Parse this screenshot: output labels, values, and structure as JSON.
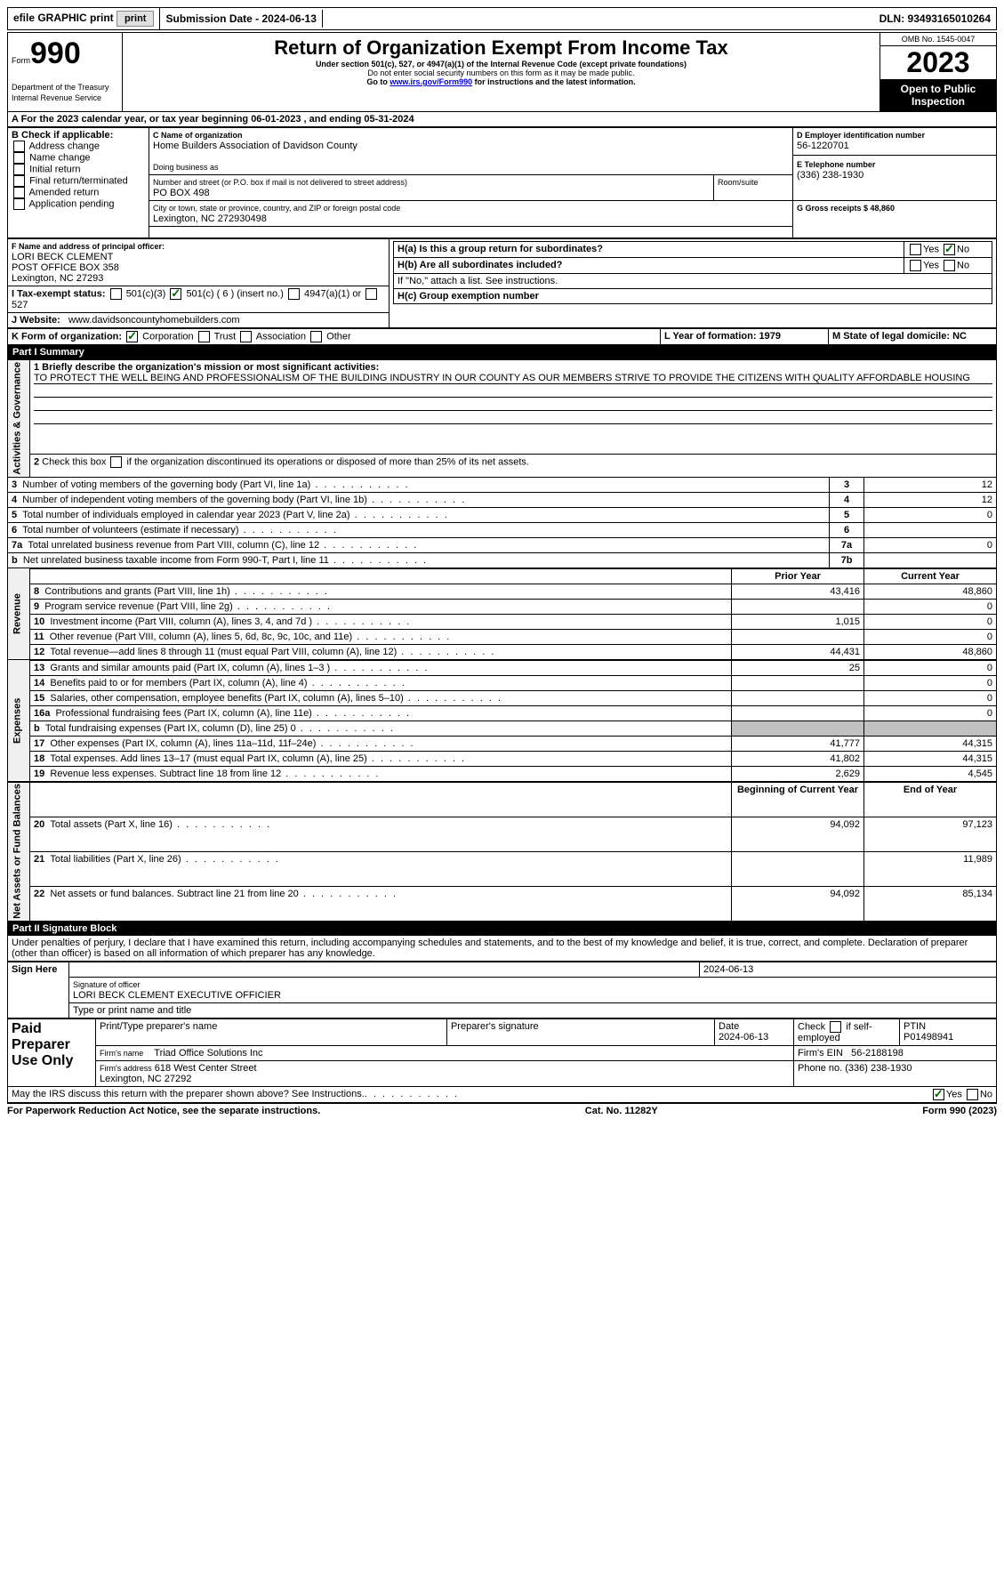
{
  "topbar": {
    "efile_label": "efile GRAPHIC print",
    "submission_label": "Submission Date - 2024-06-13",
    "dln_label": "DLN: 93493165010264"
  },
  "header": {
    "form_label": "Form",
    "form_number": "990",
    "dept": "Department of the Treasury",
    "irs": "Internal Revenue Service",
    "title": "Return of Organization Exempt From Income Tax",
    "subtitle": "Under section 501(c), 527, or 4947(a)(1) of the Internal Revenue Code (except private foundations)",
    "warning": "Do not enter social security numbers on this form as it may be made public.",
    "goto": "Go to www.irs.gov/Form990 for instructions and the latest information.",
    "omb": "OMB No. 1545-0047",
    "year": "2023",
    "open_public": "Open to Public Inspection"
  },
  "row_a": {
    "label": "A For the 2023 calendar year, or tax year beginning 06-01-2023    , and ending 05-31-2024"
  },
  "section_b": {
    "label": "B Check if applicable:",
    "opts": [
      "Address change",
      "Name change",
      "Initial return",
      "Final return/terminated",
      "Amended return",
      "Application pending"
    ]
  },
  "section_c": {
    "name_label": "C Name of organization",
    "org_name": "Home Builders Association of Davidson County",
    "dba_label": "Doing business as",
    "street_label": "Number and street (or P.O. box if mail is not delivered to street address)",
    "street": "PO BOX 498",
    "room_label": "Room/suite",
    "city_label": "City or town, state or province, country, and ZIP or foreign postal code",
    "city": "Lexington, NC  272930498"
  },
  "section_d": {
    "label": "D Employer identification number",
    "value": "56-1220701"
  },
  "section_e": {
    "label": "E Telephone number",
    "value": "(336) 238-1930"
  },
  "section_g": {
    "label": "G Gross receipts $ 48,860"
  },
  "section_f": {
    "label": "F Name and address of principal officer:",
    "name": "LORI BECK CLEMENT",
    "addr1": "POST OFFICE BOX 358",
    "addr2": "Lexington, NC  27293"
  },
  "section_h": {
    "ha_label": "H(a)  Is this a group return for subordinates?",
    "hb_label": "H(b)  Are all subordinates included?",
    "hb_note": "If \"No,\" attach a list. See instructions.",
    "hc_label": "H(c)  Group exemption number"
  },
  "row_i": {
    "label": "I    Tax-exempt status:",
    "opts": [
      "501(c)(3)",
      "501(c) ( 6 ) (insert no.)",
      "4947(a)(1) or",
      "527"
    ]
  },
  "row_j": {
    "label": "J    Website:",
    "value": "www.davidsoncountyhomebuilders.com"
  },
  "row_k": {
    "label": "K Form of organization:",
    "opts": [
      "Corporation",
      "Trust",
      "Association",
      "Other"
    ]
  },
  "row_l": {
    "label": "L Year of formation: 1979"
  },
  "row_m": {
    "label": "M State of legal domicile: NC"
  },
  "part1": {
    "header": "Part I      Summary",
    "q1_label": "1   Briefly describe the organization's mission or most significant activities:",
    "q1_value": "TO PROTECT THE WELL BEING AND PROFESSIONALISM OF THE BUILDING INDUSTRY IN OUR COUNTY AS OUR MEMBERS STRIVE TO PROVIDE THE CITIZENS WITH QUALITY AFFORDABLE HOUSING",
    "q2": "2   Check this box           if the organization discontinued its operations or disposed of more than 25% of its net assets.",
    "rows_ag": [
      {
        "num": "3",
        "label": "Number of voting members of the governing body (Part VI, line 1a)",
        "col": "3",
        "val": "12"
      },
      {
        "num": "4",
        "label": "Number of independent voting members of the governing body (Part VI, line 1b)",
        "col": "4",
        "val": "12"
      },
      {
        "num": "5",
        "label": "Total number of individuals employed in calendar year 2023 (Part V, line 2a)",
        "col": "5",
        "val": "0"
      },
      {
        "num": "6",
        "label": "Total number of volunteers (estimate if necessary)",
        "col": "6",
        "val": ""
      },
      {
        "num": "7a",
        "label": "Total unrelated business revenue from Part VIII, column (C), line 12",
        "col": "7a",
        "val": "0"
      },
      {
        "num": "b",
        "label": "Net unrelated business taxable income from Form 990-T, Part I, line 11",
        "col": "7b",
        "val": ""
      }
    ],
    "prior_year": "Prior Year",
    "current_year": "Current Year",
    "rows_rev": [
      {
        "num": "8",
        "label": "Contributions and grants (Part VIII, line 1h)",
        "py": "43,416",
        "cy": "48,860"
      },
      {
        "num": "9",
        "label": "Program service revenue (Part VIII, line 2g)",
        "py": "",
        "cy": "0"
      },
      {
        "num": "10",
        "label": "Investment income (Part VIII, column (A), lines 3, 4, and 7d )",
        "py": "1,015",
        "cy": "0"
      },
      {
        "num": "11",
        "label": "Other revenue (Part VIII, column (A), lines 5, 6d, 8c, 9c, 10c, and 11e)",
        "py": "",
        "cy": "0"
      },
      {
        "num": "12",
        "label": "Total revenue—add lines 8 through 11 (must equal Part VIII, column (A), line 12)",
        "py": "44,431",
        "cy": "48,860"
      }
    ],
    "rows_exp": [
      {
        "num": "13",
        "label": "Grants and similar amounts paid (Part IX, column (A), lines 1–3 )",
        "py": "25",
        "cy": "0"
      },
      {
        "num": "14",
        "label": "Benefits paid to or for members (Part IX, column (A), line 4)",
        "py": "",
        "cy": "0"
      },
      {
        "num": "15",
        "label": "Salaries, other compensation, employee benefits (Part IX, column (A), lines 5–10)",
        "py": "",
        "cy": "0"
      },
      {
        "num": "16a",
        "label": "Professional fundraising fees (Part IX, column (A), line 11e)",
        "py": "",
        "cy": "0"
      },
      {
        "num": "b",
        "label": "Total fundraising expenses (Part IX, column (D), line 25) 0",
        "py": "__SHADED__",
        "cy": "__SHADED__"
      },
      {
        "num": "17",
        "label": "Other expenses (Part IX, column (A), lines 11a–11d, 11f–24e)",
        "py": "41,777",
        "cy": "44,315"
      },
      {
        "num": "18",
        "label": "Total expenses. Add lines 13–17 (must equal Part IX, column (A), line 25)",
        "py": "41,802",
        "cy": "44,315"
      },
      {
        "num": "19",
        "label": "Revenue less expenses. Subtract line 18 from line 12",
        "py": "2,629",
        "cy": "4,545"
      }
    ],
    "begin_year": "Beginning of Current Year",
    "end_year": "End of Year",
    "rows_na": [
      {
        "num": "20",
        "label": "Total assets (Part X, line 16)",
        "py": "94,092",
        "cy": "97,123"
      },
      {
        "num": "21",
        "label": "Total liabilities (Part X, line 26)",
        "py": "",
        "cy": "11,989"
      },
      {
        "num": "22",
        "label": "Net assets or fund balances. Subtract line 21 from line 20",
        "py": "94,092",
        "cy": "85,134"
      }
    ],
    "vert_ag": "Activities & Governance",
    "vert_rev": "Revenue",
    "vert_exp": "Expenses",
    "vert_na": "Net Assets or Fund Balances"
  },
  "part2": {
    "header": "Part II     Signature Block",
    "declaration": "Under penalties of perjury, I declare that I have examined this return, including accompanying schedules and statements, and to the best of my knowledge and belief, it is true, correct, and complete. Declaration of preparer (other than officer) is based on all information of which preparer has any knowledge.",
    "sign_here": "Sign Here",
    "sig_date": "2024-06-13",
    "sig_officer_label": "Signature of officer",
    "officer_name": "LORI BECK CLEMENT  EXECUTIVE OFFICIER",
    "type_label": "Type or print name and title",
    "date_label": "Date",
    "paid_prep": "Paid Preparer Use Only",
    "print_name_label": "Print/Type preparer's name",
    "prep_sig_label": "Preparer's signature",
    "prep_date": "Date\n2024-06-13",
    "check_self": "Check          if self-employed",
    "ptin_label": "PTIN",
    "ptin": "P01498941",
    "firm_name_label": "Firm's name",
    "firm_name": "Triad Office Solutions Inc",
    "firm_ein_label": "Firm's EIN",
    "firm_ein": "56-2188198",
    "firm_addr_label": "Firm's address",
    "firm_addr": "618 West Center Street\nLexington, NC  27292",
    "phone_label": "Phone no.",
    "phone": "(336) 238-1930",
    "may_discuss": "May the IRS discuss this return with the preparer shown above? See Instructions."
  },
  "footer": {
    "paperwork": "For Paperwork Reduction Act Notice, see the separate instructions.",
    "cat": "Cat. No. 11282Y",
    "form": "Form 990 (2023)"
  }
}
